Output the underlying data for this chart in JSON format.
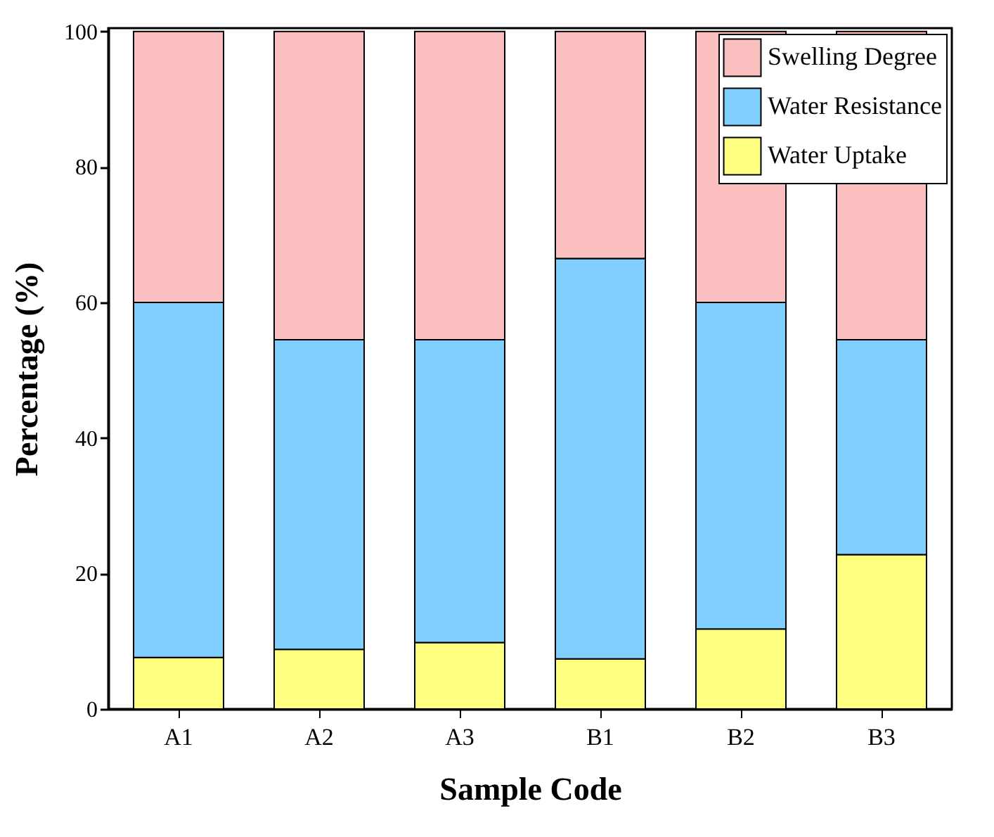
{
  "chart_data": {
    "type": "bar",
    "stacked": true,
    "xlabel": "Sample Code",
    "ylabel": "Percentage (%)",
    "categories": [
      "A1",
      "A2",
      "A3",
      "B1",
      "B2",
      "B3"
    ],
    "series": [
      {
        "name": "Water Uptake",
        "color": "#ffff80",
        "values": [
          7.6,
          8.8,
          9.8,
          7.4,
          11.8,
          22.8
        ]
      },
      {
        "name": "Water Resistance",
        "color": "#80cfff",
        "values": [
          52.4,
          45.7,
          44.7,
          59.1,
          48.2,
          31.7
        ]
      },
      {
        "name": "Swelling Degree",
        "color": "#fbbfbf",
        "values": [
          40,
          45.5,
          45.5,
          33.5,
          40,
          45.5
        ]
      }
    ],
    "ylim": [
      0,
      100.5
    ],
    "yticks": [
      0,
      20,
      40,
      60,
      80,
      100
    ],
    "grid": false,
    "legend": "top right"
  }
}
